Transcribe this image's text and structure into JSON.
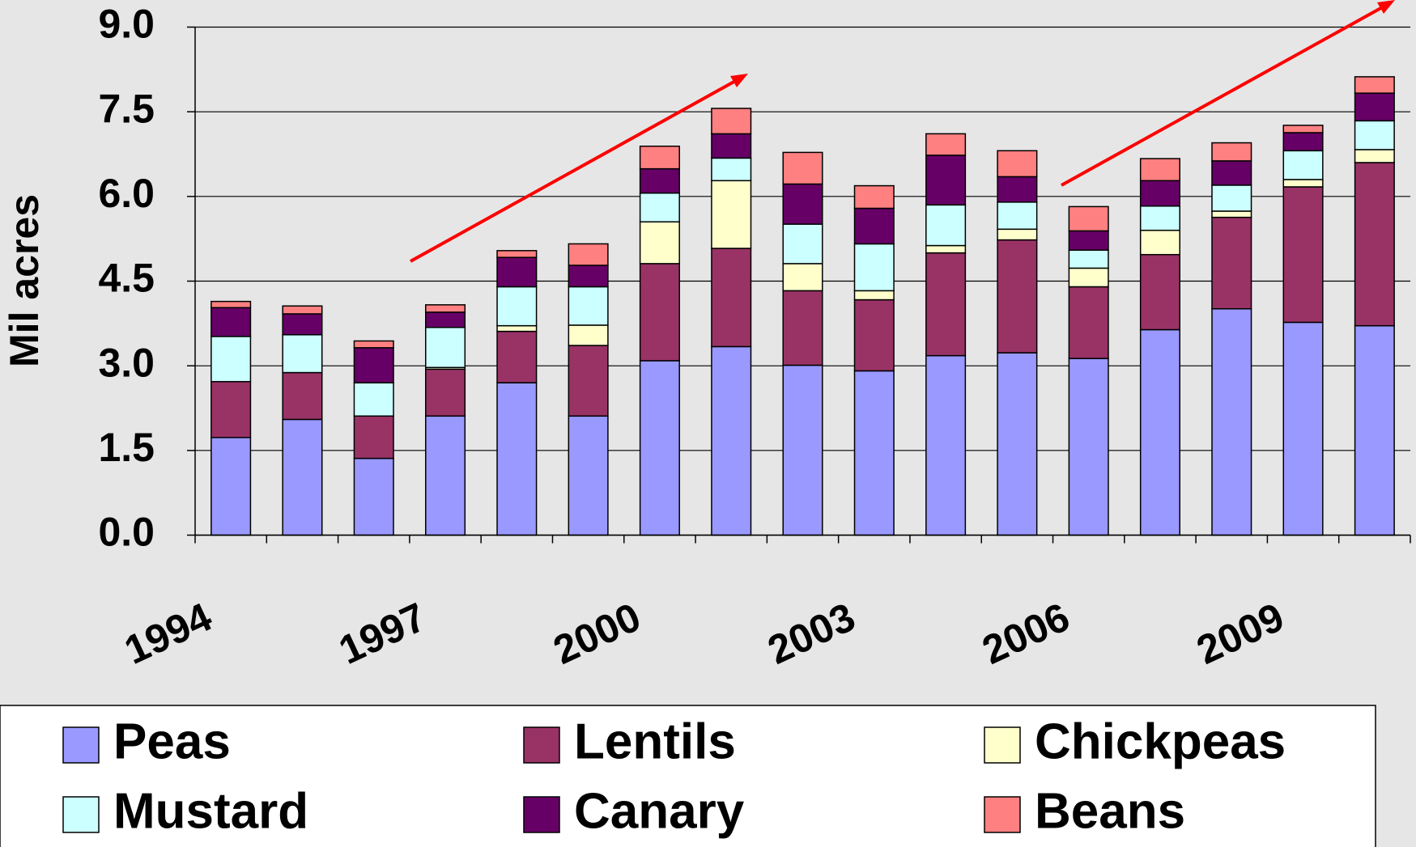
{
  "chart_data": {
    "type": "stacked_bar",
    "y_label": "Mil acres",
    "categories": [
      "1994",
      null,
      null,
      "1997",
      null,
      null,
      "2000",
      null,
      null,
      "2003",
      null,
      null,
      "2006",
      null,
      null,
      "2009",
      null
    ],
    "series": [
      {
        "name": "Peas",
        "color": "#9999ff",
        "values": [
          1.73,
          2.05,
          1.36,
          2.11,
          2.7,
          2.11,
          3.09,
          3.34,
          3.01,
          2.91,
          3.18,
          3.23,
          3.13,
          3.64,
          4.01,
          3.77,
          3.71
        ]
      },
      {
        "name": "Lentils",
        "color": "#993366",
        "values": [
          0.99,
          0.83,
          0.75,
          0.83,
          0.91,
          1.25,
          1.72,
          1.74,
          1.32,
          1.26,
          1.82,
          2.0,
          1.27,
          1.33,
          1.62,
          2.4,
          2.89
        ]
      },
      {
        "name": "Chickpeas",
        "color": "#ffffcc",
        "values": [
          0,
          0,
          0,
          0.03,
          0.1,
          0.36,
          0.74,
          1.2,
          0.48,
          0.16,
          0.13,
          0.19,
          0.33,
          0.43,
          0.11,
          0.13,
          0.23
        ]
      },
      {
        "name": "Mustard",
        "color": "#ccffff",
        "values": [
          0.8,
          0.67,
          0.59,
          0.71,
          0.69,
          0.68,
          0.51,
          0.4,
          0.7,
          0.83,
          0.72,
          0.48,
          0.32,
          0.43,
          0.46,
          0.51,
          0.51
        ]
      },
      {
        "name": "Canary",
        "color": "#660066",
        "values": [
          0.51,
          0.37,
          0.62,
          0.27,
          0.52,
          0.38,
          0.43,
          0.43,
          0.71,
          0.63,
          0.88,
          0.45,
          0.34,
          0.45,
          0.43,
          0.32,
          0.49
        ]
      },
      {
        "name": "Beans",
        "color": "#ff8080",
        "values": [
          0.11,
          0.14,
          0.12,
          0.13,
          0.12,
          0.38,
          0.4,
          0.45,
          0.56,
          0.4,
          0.38,
          0.46,
          0.43,
          0.39,
          0.32,
          0.13,
          0.29
        ]
      }
    ],
    "ylim": [
      0,
      9
    ],
    "yticks": [
      {
        "value": 0,
        "label": "0.0"
      },
      1.5,
      {
        "value": 3,
        "label": "3.0"
      },
      4.5,
      {
        "value": 6,
        "label": "6.0"
      },
      7.5,
      {
        "value": 9,
        "label": "9.0"
      }
    ],
    "grid": true,
    "legend": "bottom"
  }
}
